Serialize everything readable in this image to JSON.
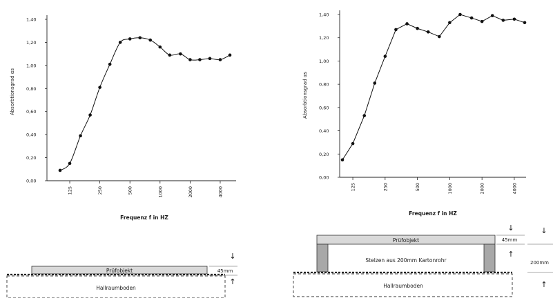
{
  "chart_data": [
    {
      "type": "line",
      "xlabel": "Frequenz f in HZ",
      "ylabel": "Absorbtionsgrad αs",
      "ylim": [
        0,
        1.4
      ],
      "yticks": [
        "0,00",
        "0,20",
        "0,40",
        "0,60",
        "0,80",
        "1,00",
        "1,20",
        "1,40"
      ],
      "xticks": [
        "125",
        "250",
        "500",
        "1000",
        "2000",
        "4000"
      ],
      "x": [
        100,
        125,
        160,
        200,
        250,
        315,
        400,
        500,
        630,
        800,
        1000,
        1250,
        1600,
        2000,
        2500,
        3150,
        4000,
        5000
      ],
      "series": [
        {
          "values": [
            0.09,
            0.15,
            0.39,
            0.57,
            0.81,
            1.01,
            1.2,
            1.23,
            1.24,
            1.22,
            1.16,
            1.09,
            1.1,
            1.05,
            1.05,
            1.06,
            1.05,
            1.09
          ]
        }
      ],
      "curve": "smooth",
      "grid": false
    },
    {
      "type": "line",
      "xlabel": "Frequenz f in HZ",
      "ylabel": "Absorbtionsgrad αs",
      "ylim": [
        0,
        1.4
      ],
      "yticks": [
        "0,00",
        "0,20",
        "0,40",
        "0,60",
        "0,80",
        "1,00",
        "1,20",
        "1,40"
      ],
      "xticks": [
        "125",
        "250",
        "500",
        "1000",
        "2000",
        "4000"
      ],
      "x": [
        100,
        125,
        160,
        200,
        250,
        315,
        400,
        500,
        630,
        800,
        1000,
        1250,
        1600,
        2000,
        2500,
        3150,
        4000,
        5000
      ],
      "series": [
        {
          "values": [
            0.15,
            0.29,
            0.53,
            0.81,
            1.04,
            1.27,
            1.32,
            1.28,
            1.25,
            1.21,
            1.33,
            1.4,
            1.37,
            1.34,
            1.39,
            1.35,
            1.36,
            1.33
          ]
        }
      ],
      "curve": "straight",
      "grid": false
    }
  ],
  "diagrams": {
    "left": {
      "object_label": "Prüfobjekt",
      "floor_label": "Hallraumboden",
      "dim_label": "45mm"
    },
    "right": {
      "object_label": "Prüfobjekt",
      "stilts_label": "Stelzen aus 200mm Kartonrohr",
      "floor_label": "Hallraumboden",
      "dim_label_top": "45mm",
      "dim_label_side": "200mm"
    }
  }
}
